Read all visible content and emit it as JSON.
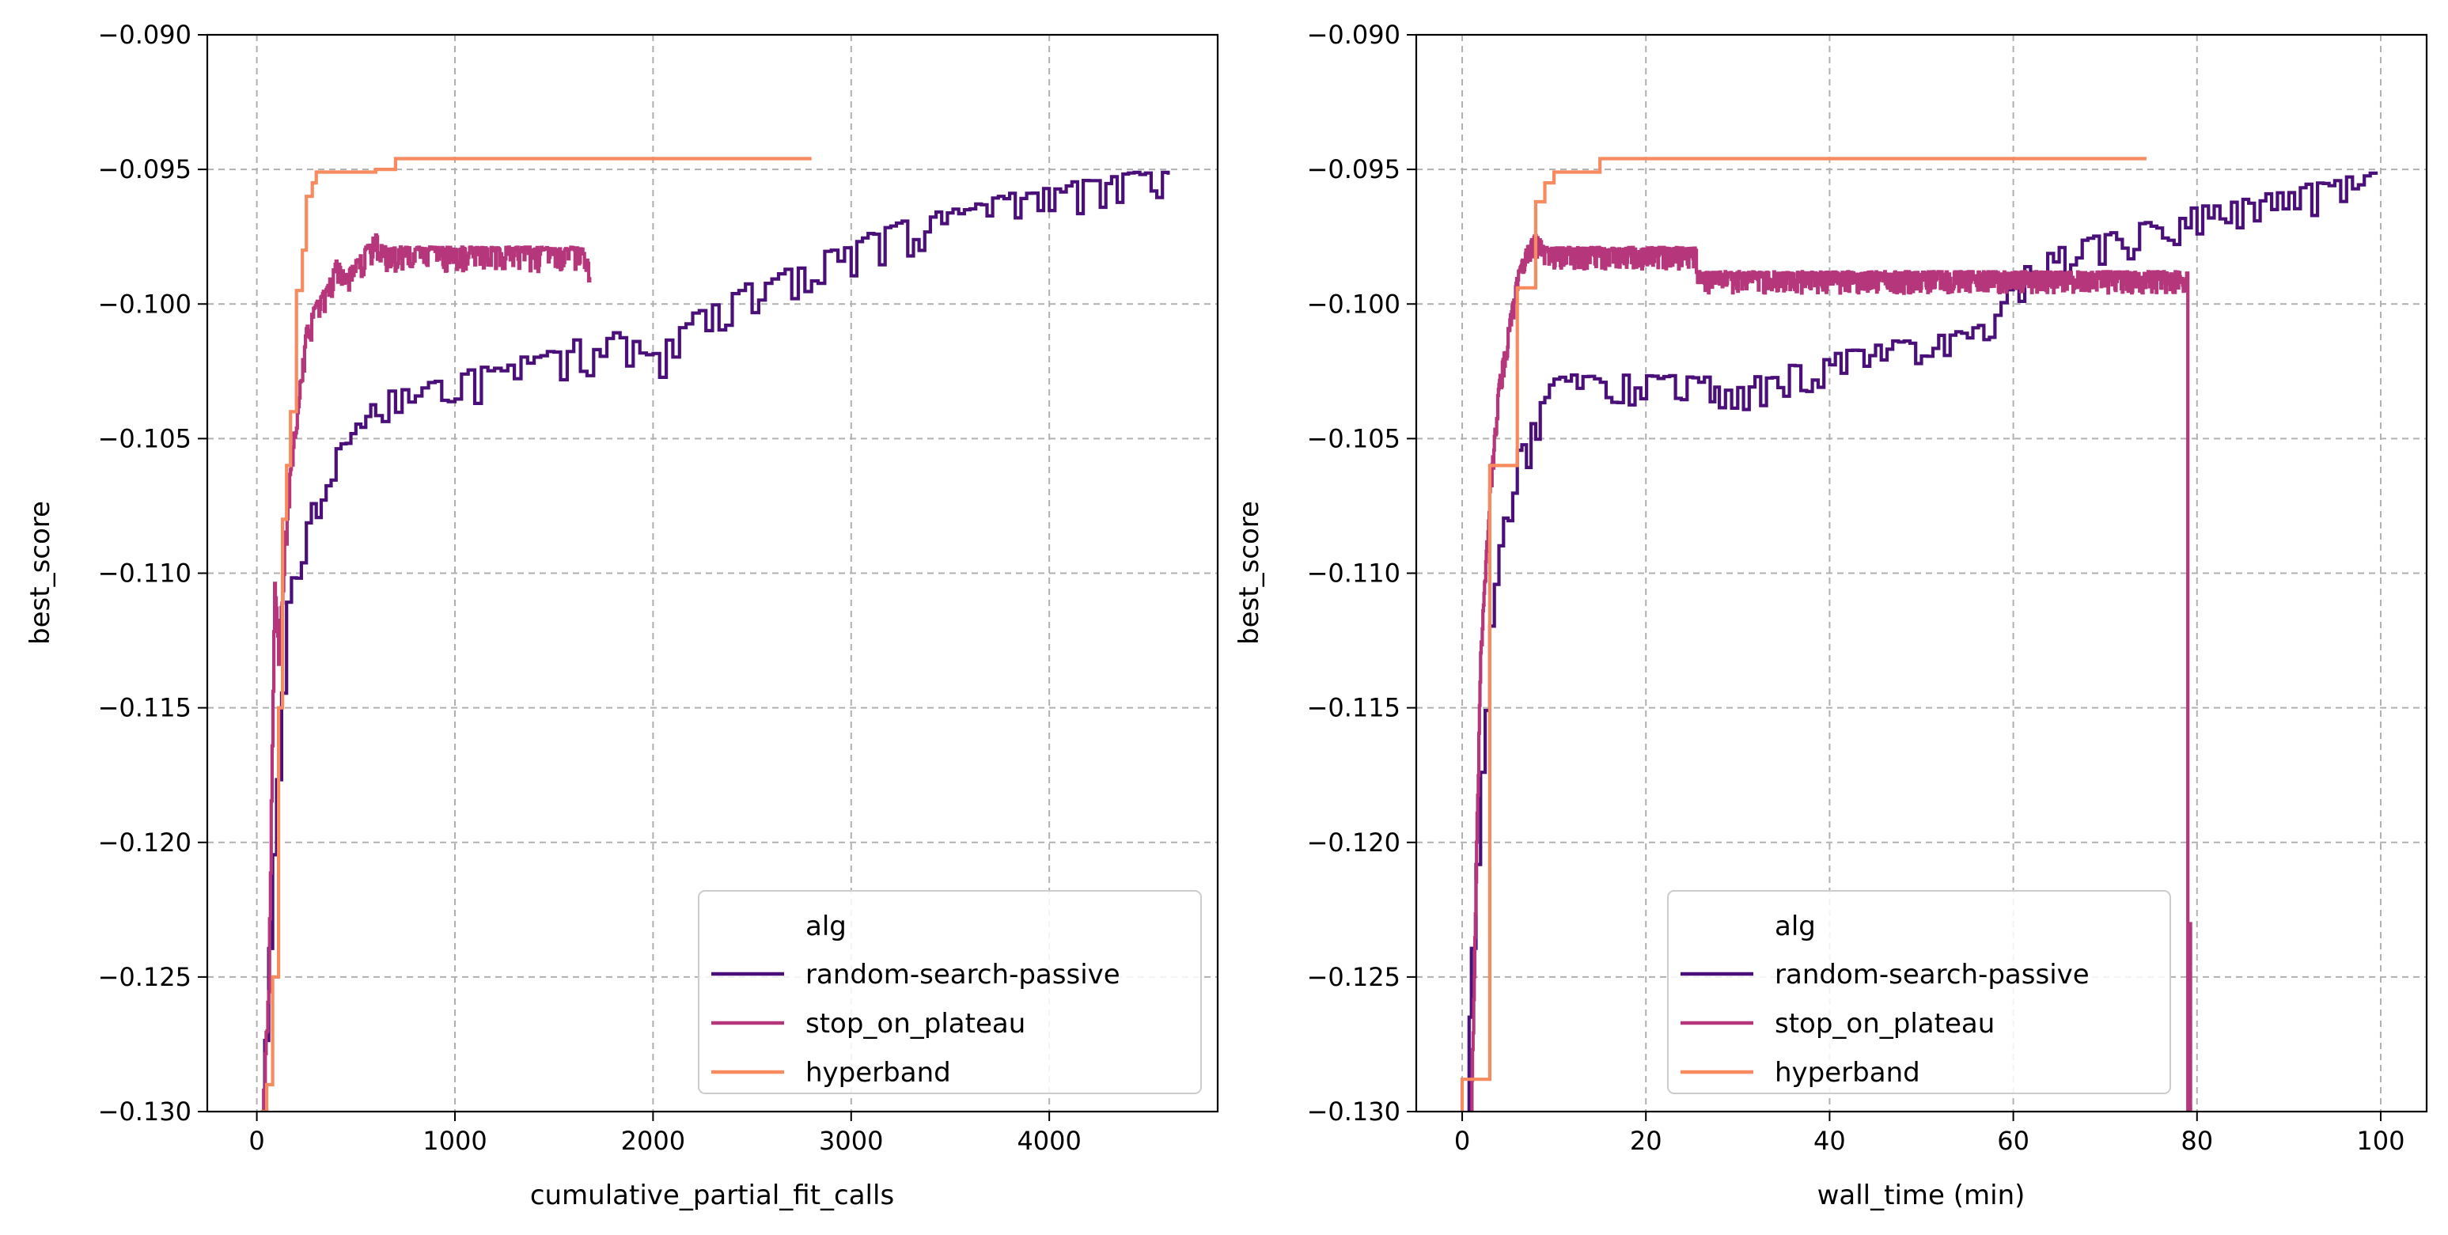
{
  "legend": {
    "title": "alg",
    "entries": [
      {
        "name": "random-search-passive",
        "color": "#4a0f78"
      },
      {
        "name": "stop_on_plateau",
        "color": "#b5367a"
      },
      {
        "name": "hyperband",
        "color": "#f88a5f"
      }
    ]
  },
  "chart_data": [
    {
      "type": "line",
      "xlabel": "cumulative_partial_fit_calls",
      "ylabel": "best_score",
      "xlim": [
        -250,
        4850
      ],
      "ylim": [
        -0.13,
        -0.09
      ],
      "xticks": [
        0,
        1000,
        2000,
        3000,
        4000
      ],
      "xtick_labels": [
        "0",
        "1000",
        "2000",
        "3000",
        "4000"
      ],
      "yticks": [
        -0.09,
        -0.095,
        -0.1,
        -0.105,
        -0.11,
        -0.115,
        -0.12,
        -0.125,
        -0.13
      ],
      "ytick_labels": [
        "−0.090",
        "−0.095",
        "−0.100",
        "−0.105",
        "−0.110",
        "−0.115",
        "−0.120",
        "−0.125",
        "−0.130"
      ],
      "grid": true,
      "legend_position": "lower-right",
      "series": [
        {
          "name": "random-search-passive",
          "color": "#4a0f78",
          "x": [
            20,
            60,
            100,
            150,
            200,
            250,
            300,
            350,
            400,
            450,
            500,
            550,
            600,
            700,
            800,
            900,
            1000,
            1100,
            1200,
            1300,
            1400,
            1500,
            1600,
            1700,
            1800,
            1900,
            2000,
            2100,
            2200,
            2300,
            2400,
            2500,
            2600,
            2700,
            2800,
            2900,
            3000,
            3200,
            3400,
            3600,
            3800,
            4000,
            4200,
            4400,
            4600
          ],
          "y": [
            -0.13,
            -0.124,
            -0.117,
            -0.111,
            -0.1095,
            -0.108,
            -0.107,
            -0.106,
            -0.1055,
            -0.105,
            -0.1045,
            -0.104,
            -0.1035,
            -0.1033,
            -0.103,
            -0.103,
            -0.1028,
            -0.1025,
            -0.1025,
            -0.102,
            -0.102,
            -0.1018,
            -0.1015,
            -0.1015,
            -0.1012,
            -0.1015,
            -0.1018,
            -0.1012,
            -0.1005,
            -0.1,
            -0.0995,
            -0.0993,
            -0.099,
            -0.0988,
            -0.0985,
            -0.098,
            -0.0978,
            -0.0972,
            -0.0968,
            -0.0965,
            -0.096,
            -0.0958,
            -0.0955,
            -0.0952,
            -0.0952
          ],
          "noise": 0.0012,
          "noise_x_scale": 4600
        },
        {
          "name": "stop_on_plateau",
          "color": "#b5367a",
          "x": [
            30,
            60,
            90,
            110,
            140,
            170,
            200,
            250,
            300,
            350,
            400,
            450,
            500,
            550,
            600,
            650,
            1000,
            1650,
            1670,
            1680
          ],
          "y": [
            -0.13,
            -0.125,
            -0.11,
            -0.113,
            -0.109,
            -0.106,
            -0.104,
            -0.101,
            -0.1,
            -0.0995,
            -0.0985,
            -0.099,
            -0.0985,
            -0.098,
            -0.0975,
            -0.098,
            -0.098,
            -0.098,
            -0.0985,
            -0.099
          ],
          "noise": 0.0008,
          "noise_x_scale": 700
        },
        {
          "name": "hyperband",
          "color": "#f88a5f",
          "x": [
            20,
            50,
            80,
            110,
            130,
            150,
            170,
            200,
            230,
            250,
            280,
            300,
            350,
            400,
            500,
            600,
            700,
            720,
            1000,
            2000,
            2800
          ],
          "y": [
            -0.13,
            -0.129,
            -0.125,
            -0.115,
            -0.108,
            -0.106,
            -0.104,
            -0.0995,
            -0.098,
            -0.096,
            -0.0955,
            -0.0951,
            -0.0951,
            -0.0951,
            -0.0951,
            -0.095,
            -0.0946,
            -0.0946,
            -0.0946,
            -0.0946,
            -0.0946
          ],
          "noise": 0,
          "noise_x_scale": 1
        }
      ]
    },
    {
      "type": "line",
      "xlabel": "wall_time (min)",
      "ylabel": "best_score",
      "xlim": [
        -5,
        105
      ],
      "ylim": [
        -0.13,
        -0.09
      ],
      "xticks": [
        0,
        20,
        40,
        60,
        80,
        100
      ],
      "xtick_labels": [
        "0",
        "20",
        "40",
        "60",
        "80",
        "100"
      ],
      "yticks": [
        -0.09,
        -0.095,
        -0.1,
        -0.105,
        -0.11,
        -0.115,
        -0.12,
        -0.125,
        -0.13
      ],
      "ytick_labels": [
        "−0.090",
        "−0.095",
        "−0.100",
        "−0.105",
        "−0.110",
        "−0.115",
        "−0.120",
        "−0.125",
        "−0.130"
      ],
      "grid": true,
      "legend_position": "lower-right",
      "series": [
        {
          "name": "random-search-passive",
          "color": "#4a0f78",
          "x": [
            0.5,
            1,
            2,
            3,
            4,
            5,
            6,
            7,
            8,
            9,
            10,
            27,
            28,
            30,
            35,
            40,
            45,
            50,
            55,
            58,
            60,
            65,
            70,
            75,
            80,
            85,
            90,
            95,
            99.5
          ],
          "y": [
            -0.13,
            -0.123,
            -0.117,
            -0.112,
            -0.109,
            -0.107,
            -0.1055,
            -0.105,
            -0.104,
            -0.1035,
            -0.1028,
            -0.1028,
            -0.1035,
            -0.103,
            -0.1025,
            -0.102,
            -0.1015,
            -0.1015,
            -0.101,
            -0.1005,
            -0.099,
            -0.098,
            -0.0975,
            -0.097,
            -0.0965,
            -0.0962,
            -0.0958,
            -0.0955,
            -0.0952
          ],
          "noise": 0.0011,
          "noise_x_scale": 100
        },
        {
          "name": "stop_on_plateau",
          "color": "#b5367a",
          "x": [
            1,
            1.5,
            2,
            2.5,
            3,
            4,
            5,
            6,
            7,
            8,
            9,
            25.5,
            25.5,
            79,
            79,
            79.3,
            79.3
          ],
          "y": [
            -0.13,
            -0.121,
            -0.113,
            -0.11,
            -0.107,
            -0.103,
            -0.101,
            -0.099,
            -0.098,
            -0.0975,
            -0.098,
            -0.098,
            -0.0989,
            -0.0989,
            -0.13,
            -0.123,
            -0.13
          ],
          "noise": 0.0007,
          "noise_x_scale": 10
        },
        {
          "name": "hyperband",
          "color": "#f88a5f",
          "x": [
            0,
            0,
            3,
            3,
            4,
            4,
            6,
            6,
            8,
            8,
            9,
            9,
            10,
            10,
            15,
            15,
            74.5
          ],
          "y": [
            -0.13,
            -0.1288,
            -0.1288,
            -0.106,
            -0.106,
            -0.106,
            -0.106,
            -0.0994,
            -0.0994,
            -0.0962,
            -0.0962,
            -0.0955,
            -0.0955,
            -0.0951,
            -0.0951,
            -0.0946,
            -0.0946
          ],
          "noise": 0,
          "noise_x_scale": 1
        }
      ]
    }
  ]
}
